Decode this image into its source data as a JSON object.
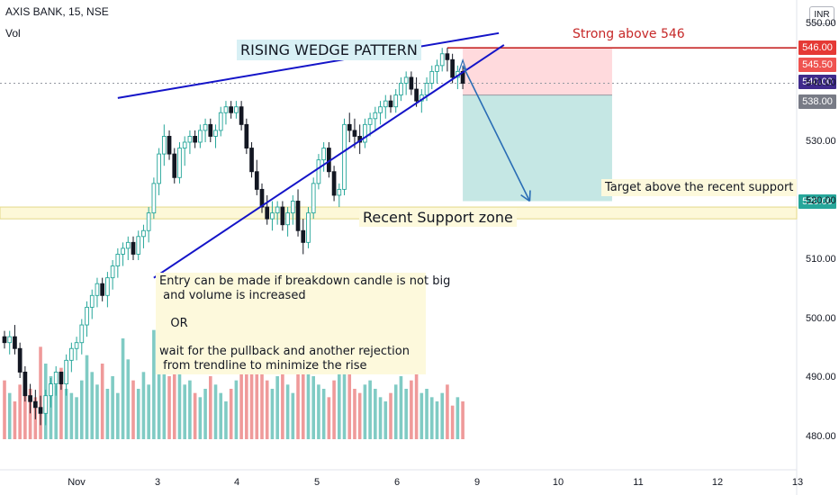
{
  "header": {
    "symbol": "AXIS BANK, 15, NSE",
    "volume_label": "Vol"
  },
  "currency_badge": "INR",
  "annotations": {
    "pattern_title": "RISING WEDGE PATTERN",
    "strong_above": "Strong above 546",
    "target_note": "Target above the recent support",
    "support_note": "Recent Support zone",
    "entry_note": "Entry can be made if breakdown candle is not big\n and volume is increased\n\n   OR\n\nwait for the pullback and another rejection\n from trendline to minimize the rise"
  },
  "price_tags": [
    {
      "label": "546.00",
      "value": 546.0,
      "color": "#e53935"
    },
    {
      "label": "545.50",
      "value": 545.5,
      "color": "#ef5350"
    },
    {
      "label": "540.00",
      "value": 540.0,
      "color": "#3f2a8c"
    },
    {
      "label": "538.00",
      "value": 538.0,
      "color": "#787b86"
    },
    {
      "label": "520.00",
      "value": 520.0,
      "color": "#26a69a"
    }
  ],
  "colors": {
    "up": "#26a69a",
    "down": "#131722",
    "vol_up": "#80cbc4",
    "vol_down": "#ef9a9a",
    "trendline": "#1414c8",
    "arrow": "#2a6db5",
    "resistance": "#c62828",
    "stop_zone": "#ffcdd2",
    "target_zone": "#b2dfdb",
    "support_zone": "#fdf8d8"
  },
  "chart_data": {
    "type": "candlestick",
    "title": "AXIS BANK, 15, NSE",
    "y_axis": {
      "ticks": [
        480,
        490,
        500,
        510,
        520,
        530,
        540,
        550
      ],
      "top_label": "550.00",
      "range": [
        476,
        550
      ]
    },
    "x_axis": {
      "ticks": [
        "Nov",
        "3",
        "4",
        "5",
        "6",
        "9",
        "10",
        "11",
        "12",
        "13"
      ]
    },
    "candles": [
      [
        497,
        498,
        495,
        496
      ],
      [
        496,
        498,
        494,
        497
      ],
      [
        497,
        499,
        494,
        495
      ],
      [
        495,
        496,
        490,
        491
      ],
      [
        491,
        492,
        486,
        487
      ],
      [
        487,
        489,
        484,
        486
      ],
      [
        486,
        488,
        483,
        485
      ],
      [
        485,
        487,
        482,
        484
      ],
      [
        484,
        488,
        482,
        487
      ],
      [
        487,
        490,
        485,
        489
      ],
      [
        489,
        492,
        487,
        491
      ],
      [
        491,
        491,
        488,
        489
      ],
      [
        489,
        494,
        487,
        493
      ],
      [
        493,
        496,
        491,
        495
      ],
      [
        495,
        497,
        493,
        496
      ],
      [
        496,
        500,
        494,
        499
      ],
      [
        499,
        503,
        497,
        502
      ],
      [
        502,
        505,
        500,
        504
      ],
      [
        504,
        507,
        502,
        506
      ],
      [
        506,
        507,
        503,
        504
      ],
      [
        504,
        508,
        502,
        507
      ],
      [
        507,
        510,
        505,
        509
      ],
      [
        509,
        512,
        507,
        511
      ],
      [
        511,
        513,
        509,
        512
      ],
      [
        512,
        514,
        510,
        513
      ],
      [
        513,
        514,
        510,
        511
      ],
      [
        511,
        515,
        510,
        514
      ],
      [
        514,
        516,
        512,
        515
      ],
      [
        515,
        519,
        513,
        518
      ],
      [
        518,
        524,
        517,
        523
      ],
      [
        523,
        529,
        521,
        528
      ],
      [
        528,
        533,
        526,
        531
      ],
      [
        531,
        532,
        527,
        528
      ],
      [
        528,
        529,
        523,
        524
      ],
      [
        524,
        530,
        523,
        529
      ],
      [
        529,
        531,
        526,
        530
      ],
      [
        530,
        532,
        528,
        531
      ],
      [
        531,
        532,
        529,
        530
      ],
      [
        530,
        533,
        529,
        532
      ],
      [
        532,
        534,
        530,
        533
      ],
      [
        533,
        534,
        530,
        531
      ],
      [
        531,
        533,
        529,
        532
      ],
      [
        532,
        536,
        531,
        535
      ],
      [
        535,
        537,
        533,
        536
      ],
      [
        536,
        537,
        534,
        535
      ],
      [
        535,
        537,
        534,
        536
      ],
      [
        536,
        537,
        532,
        533
      ],
      [
        533,
        534,
        528,
        529
      ],
      [
        529,
        530,
        524,
        525
      ],
      [
        525,
        527,
        521,
        522
      ],
      [
        522,
        523,
        518,
        519
      ],
      [
        519,
        521,
        516,
        517
      ],
      [
        517,
        520,
        515,
        518
      ],
      [
        518,
        520,
        516,
        519
      ],
      [
        519,
        520,
        515,
        516
      ],
      [
        516,
        519,
        514,
        518
      ],
      [
        518,
        521,
        516,
        520
      ],
      [
        520,
        522,
        514,
        515
      ],
      [
        515,
        517,
        511,
        513
      ],
      [
        513,
        519,
        512,
        518
      ],
      [
        518,
        524,
        517,
        523
      ],
      [
        523,
        528,
        522,
        527
      ],
      [
        527,
        530,
        525,
        529
      ],
      [
        529,
        530,
        524,
        525
      ],
      [
        525,
        526,
        520,
        521
      ],
      [
        521,
        523,
        519,
        522
      ],
      [
        522,
        534,
        521,
        533
      ],
      [
        533,
        535,
        530,
        532
      ],
      [
        532,
        534,
        529,
        531
      ],
      [
        531,
        533,
        528,
        530
      ],
      [
        530,
        534,
        529,
        533
      ],
      [
        533,
        535,
        531,
        534
      ],
      [
        534,
        536,
        532,
        535
      ],
      [
        535,
        537,
        533,
        536
      ],
      [
        536,
        538,
        534,
        537
      ],
      [
        537,
        538,
        535,
        536
      ],
      [
        536,
        539,
        535,
        538
      ],
      [
        538,
        541,
        537,
        540
      ],
      [
        540,
        542,
        538,
        541
      ],
      [
        541,
        542,
        538,
        539
      ],
      [
        539,
        541,
        536,
        537
      ],
      [
        537,
        539,
        535,
        538
      ],
      [
        538,
        541,
        537,
        540
      ],
      [
        540,
        543,
        539,
        542
      ],
      [
        542,
        544,
        540,
        543
      ],
      [
        543,
        546,
        542,
        545
      ],
      [
        545,
        546,
        542,
        544
      ],
      [
        544,
        545,
        540,
        541
      ],
      [
        541,
        543,
        539,
        542
      ],
      [
        542,
        543,
        539,
        540
      ]
    ],
    "volume": [
      14,
      11,
      9,
      13,
      16,
      12,
      10,
      22,
      18,
      15,
      13,
      17,
      12,
      11,
      10,
      14,
      20,
      16,
      13,
      18,
      12,
      15,
      11,
      24,
      19,
      14,
      12,
      16,
      13,
      26,
      22,
      18,
      15,
      21,
      17,
      13,
      14,
      11,
      10,
      12,
      15,
      13,
      11,
      9,
      12,
      14,
      17,
      20,
      23,
      19,
      16,
      14,
      12,
      15,
      18,
      13,
      11,
      27,
      22,
      17,
      15,
      13,
      12,
      10,
      14,
      25,
      20,
      16,
      12,
      11,
      13,
      14,
      12,
      10,
      9,
      11,
      13,
      15,
      12,
      14,
      16,
      11,
      12,
      10,
      9,
      11,
      13,
      8,
      10,
      9
    ],
    "trendlines": [
      {
        "name": "upper-wedge",
        "from": [
          22,
          537.5
        ],
        "to": [
          96,
          548.5
        ]
      },
      {
        "name": "lower-wedge",
        "from": [
          29,
          507
        ],
        "to": [
          97,
          546.5
        ]
      }
    ],
    "levels": [
      {
        "name": "resistance",
        "value": 546
      },
      {
        "name": "reference",
        "value": 540
      }
    ],
    "zones": [
      {
        "name": "stop-zone",
        "from_x": 89,
        "to_x": 118,
        "y_low": 538,
        "y_high": 546
      },
      {
        "name": "target-zone",
        "from_x": 89,
        "to_x": 118,
        "y_low": 520,
        "y_high": 538
      },
      {
        "name": "support-zone",
        "y_low": 517,
        "y_high": 519
      }
    ],
    "arrow": {
      "from": [
        89,
        543
      ],
      "to": [
        102,
        520
      ]
    }
  }
}
